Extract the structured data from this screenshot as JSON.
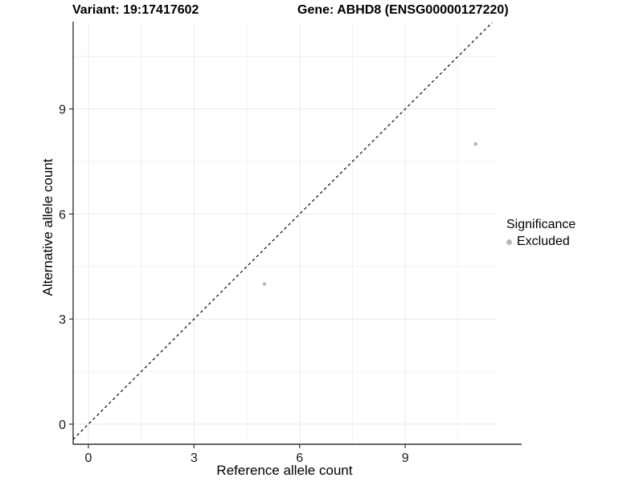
{
  "chart_data": {
    "type": "scatter",
    "title_left": "Variant: 19:17417602",
    "title_right": "Gene: ABHD8 (ENSG00000127220)",
    "xlabel": "Reference allele count",
    "ylabel": "Alternative allele count",
    "xlim": [
      -0.55,
      11.55
    ],
    "ylim": [
      -0.55,
      11.55
    ],
    "x_ticks": [
      0,
      3,
      6,
      9
    ],
    "y_ticks": [
      0,
      3,
      6,
      9
    ],
    "x_minor_ticks": [
      1.5,
      4.5,
      7.5,
      10.5
    ],
    "y_minor_ticks": [
      1.5,
      4.5,
      7.5,
      10.5
    ],
    "grid": true,
    "points": [
      {
        "x": 5,
        "y": 4,
        "significance": "Excluded"
      },
      {
        "x": 11,
        "y": 8,
        "significance": "Excluded"
      }
    ],
    "abline": {
      "slope": 1,
      "intercept": 0,
      "style": "dashed"
    },
    "legend": {
      "position": "right",
      "title": "Significance",
      "entries": [
        {
          "label": "Excluded",
          "color": "#b9b9b9"
        }
      ]
    },
    "colors": {
      "background": "#ffffff",
      "point": "#b9b9b9",
      "grid_major": "#e9e9e9",
      "grid_minor": "#f2f2f2",
      "axis_line": "#333333",
      "tick_text": "#1a1a1a",
      "diagonal": "#000000"
    }
  }
}
